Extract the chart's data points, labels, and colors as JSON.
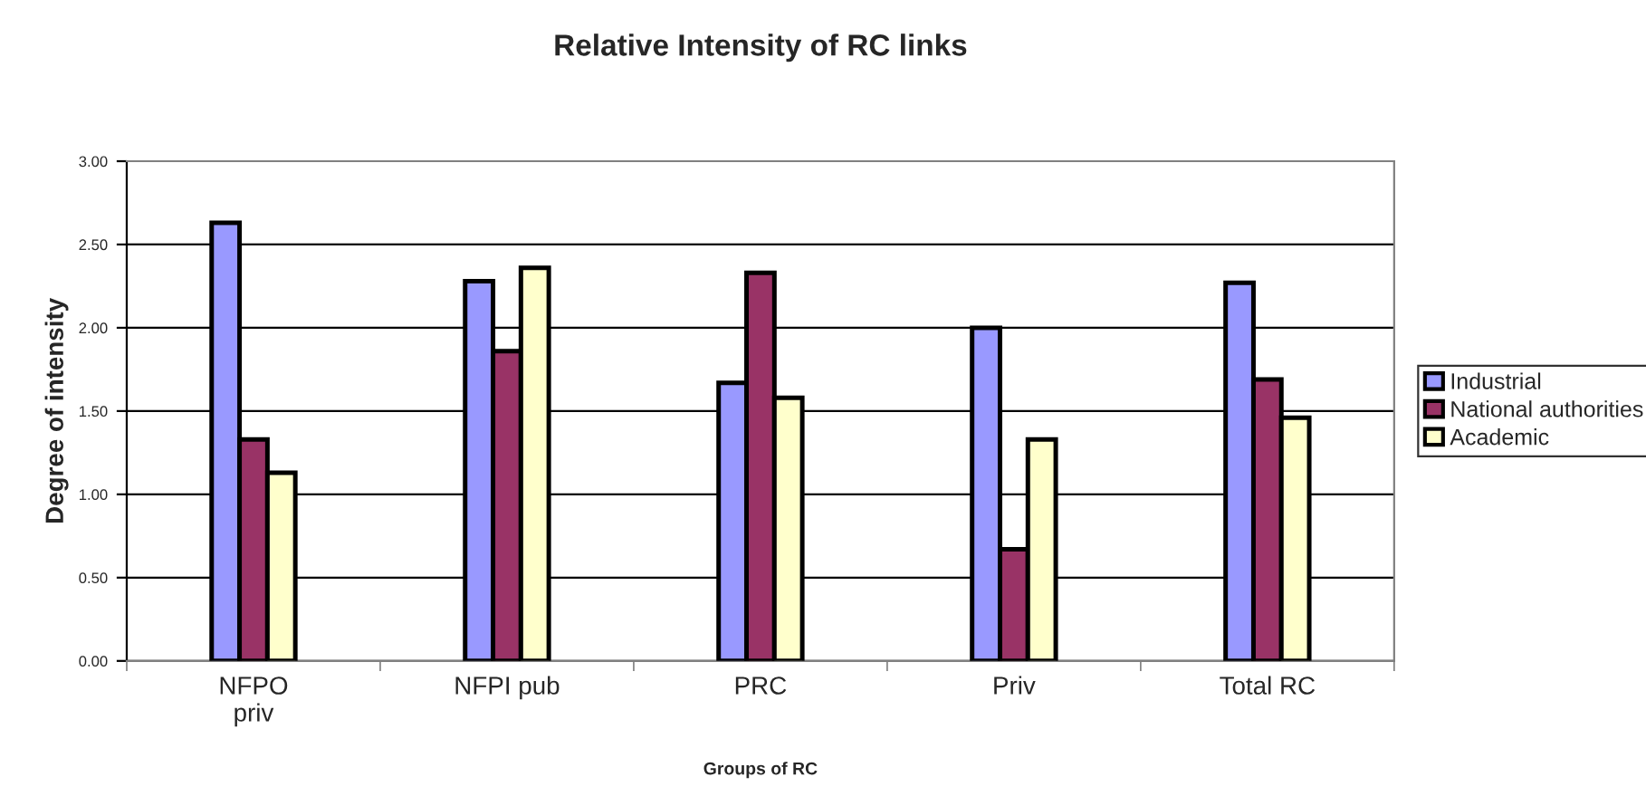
{
  "chart_data": {
    "type": "bar",
    "title": "Relative Intensity of RC links",
    "xlabel": "Groups of RC",
    "ylabel": "Degree of intensity",
    "categories": [
      "NFPO\npriv",
      "NFPI pub",
      "PRC",
      "Priv",
      "Total RC"
    ],
    "series": [
      {
        "name": "Industrial",
        "color": "#9999ff",
        "values": [
          2.63,
          2.28,
          1.67,
          2.0,
          2.27
        ]
      },
      {
        "name": "National authorities",
        "color": "#993366",
        "values": [
          1.33,
          1.86,
          2.33,
          0.67,
          1.69
        ]
      },
      {
        "name": "Academic",
        "color": "#ffffcc",
        "values": [
          1.13,
          2.36,
          1.58,
          1.33,
          1.46
        ]
      }
    ],
    "ylim": [
      0,
      3
    ],
    "yticks": [
      {
        "value": 0,
        "label": "0.00"
      },
      {
        "value": 0.5,
        "label": "0.50"
      },
      {
        "value": 1,
        "label": "1.00"
      },
      {
        "value": 1.5,
        "label": "1.50"
      },
      {
        "value": 2,
        "label": "2.00"
      },
      {
        "value": 2.5,
        "label": "2.50"
      },
      {
        "value": 3,
        "label": "3.00"
      }
    ],
    "grid": "y",
    "legend": "right"
  }
}
